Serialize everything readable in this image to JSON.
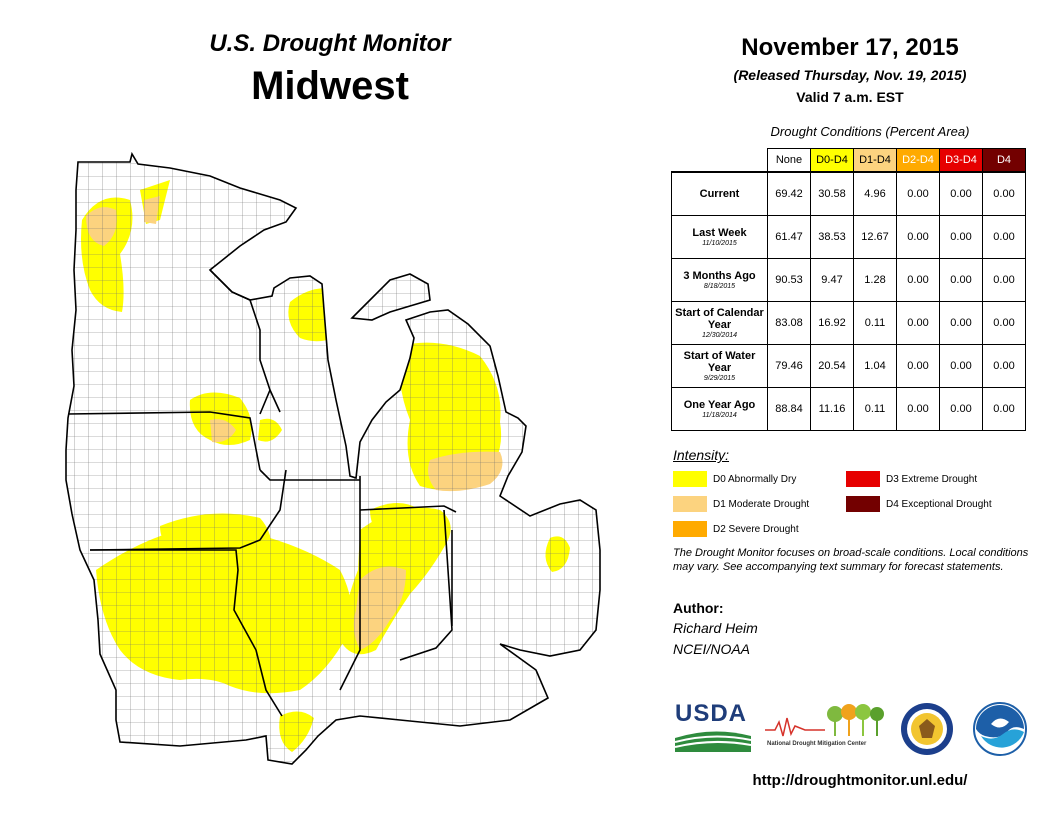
{
  "header": {
    "program": "U.S. Drought Monitor",
    "region": "Midwest",
    "date": "November 17, 2015",
    "released": "(Released Thursday, Nov. 19, 2015)",
    "valid": "Valid  7 a.m. EST"
  },
  "conditions_table": {
    "title": "Drought Conditions (Percent Area)",
    "columns": [
      {
        "label": "None",
        "color": "#ffffff",
        "text_color": "#000000"
      },
      {
        "label": "D0-D4",
        "color": "#ffff00",
        "text_color": "#000000"
      },
      {
        "label": "D1-D4",
        "color": "#fcd37f",
        "text_color": "#000000"
      },
      {
        "label": "D2-D4",
        "color": "#ffaa00",
        "text_color": "#ffffff"
      },
      {
        "label": "D3-D4",
        "color": "#e60000",
        "text_color": "#ffffff"
      },
      {
        "label": "D4",
        "color": "#730000",
        "text_color": "#ffffff"
      }
    ],
    "rows": [
      {
        "label": "Current",
        "date": "",
        "values": [
          "69.42",
          "30.58",
          "4.96",
          "0.00",
          "0.00",
          "0.00"
        ]
      },
      {
        "label": "Last Week",
        "date": "11/10/2015",
        "values": [
          "61.47",
          "38.53",
          "12.67",
          "0.00",
          "0.00",
          "0.00"
        ]
      },
      {
        "label": "3 Months Ago",
        "date": "8/18/2015",
        "values": [
          "90.53",
          "9.47",
          "1.28",
          "0.00",
          "0.00",
          "0.00"
        ]
      },
      {
        "label": "Start of Calendar Year",
        "date": "12/30/2014",
        "values": [
          "83.08",
          "16.92",
          "0.11",
          "0.00",
          "0.00",
          "0.00"
        ]
      },
      {
        "label": "Start of Water Year",
        "date": "9/29/2015",
        "values": [
          "79.46",
          "20.54",
          "1.04",
          "0.00",
          "0.00",
          "0.00"
        ]
      },
      {
        "label": "One Year Ago",
        "date": "11/18/2014",
        "values": [
          "88.84",
          "11.16",
          "0.11",
          "0.00",
          "0.00",
          "0.00"
        ]
      }
    ]
  },
  "legend": {
    "title": "Intensity:",
    "items": [
      {
        "label": "D0 Abnormally Dry",
        "color": "#ffff00"
      },
      {
        "label": "D1 Moderate Drought",
        "color": "#fcd37f"
      },
      {
        "label": "D2 Severe Drought",
        "color": "#ffaa00"
      },
      {
        "label": "D3 Extreme Drought",
        "color": "#e60000"
      },
      {
        "label": "D4 Exceptional Drought",
        "color": "#730000"
      }
    ]
  },
  "note": "The Drought Monitor focuses on broad-scale conditions. Local conditions may vary. See accompanying text summary for forecast statements.",
  "author": {
    "heading": "Author:",
    "name": "Richard Heim",
    "org": "NCEI/NOAA"
  },
  "logos": {
    "usda": "USDA",
    "ndmc": "National Drought Mitigation Center"
  },
  "url": "http://droughtmonitor.unl.edu/"
}
